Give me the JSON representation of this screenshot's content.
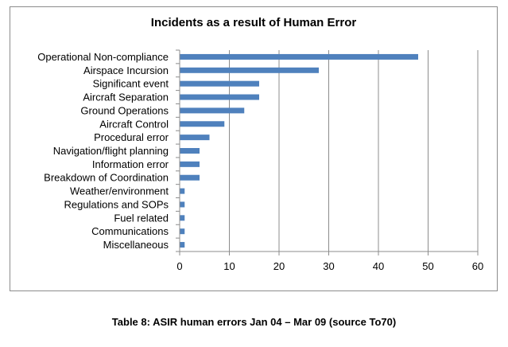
{
  "chart_data": {
    "type": "bar",
    "orientation": "horizontal",
    "title": "Incidents as a result of Human Error",
    "categories": [
      "Operational Non-compliance",
      "Airspace Incursion",
      "Significant event",
      "Aircraft Separation",
      "Ground Operations",
      "Aircraft Control",
      "Procedural error",
      "Navigation/flight planning",
      "Information error",
      "Breakdown of Coordination",
      "Weather/environment",
      "Regulations and SOPs",
      "Fuel related",
      "Communications",
      "Miscellaneous"
    ],
    "values": [
      48,
      28,
      16,
      16,
      13,
      9,
      6,
      4,
      4,
      4,
      1,
      1,
      1,
      1,
      1
    ],
    "xlim": [
      0,
      60
    ],
    "xticks": [
      "0",
      "10",
      "20",
      "30",
      "40",
      "50",
      "60"
    ],
    "grid": "vertical",
    "legend": "none",
    "bar_color": "#4f81bd"
  },
  "caption": "Table 8: ASIR human errors Jan 04 – Mar 09 (source To70)"
}
